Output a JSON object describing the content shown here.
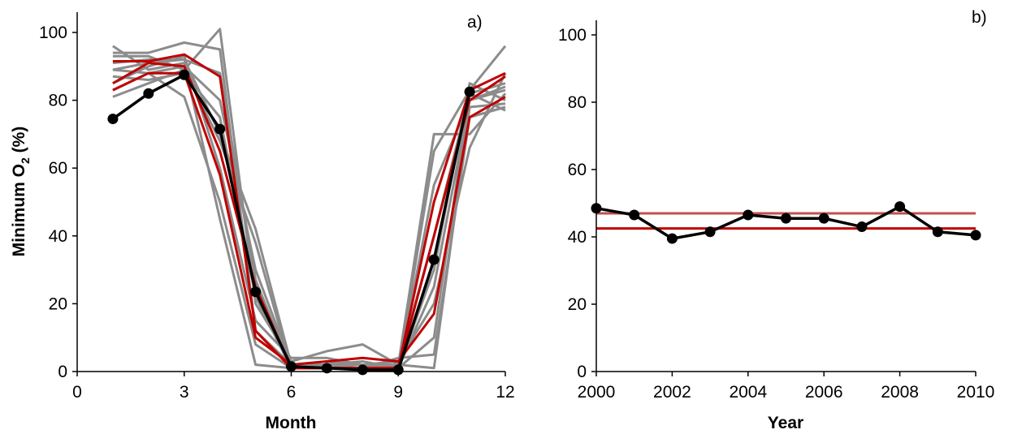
{
  "chart_data": [
    {
      "type": "line",
      "panel_label": "a)",
      "xlabel": "Month",
      "ylabel_main": "Minimum O",
      "ylabel_sub": "2",
      "ylabel_tail": " (%)",
      "xlim": [
        0,
        12
      ],
      "ylim": [
        0,
        100
      ],
      "xticks": [
        0,
        3,
        6,
        9,
        12
      ],
      "yticks": [
        0,
        20,
        40,
        60,
        80,
        100
      ],
      "colors": {
        "gray": "#8c8c8c",
        "red": "#c00000",
        "black": "#000000"
      },
      "series": [
        {
          "color": "gray",
          "x": [
            1,
            2,
            3,
            4,
            5,
            6,
            7,
            8,
            9,
            10,
            11,
            12
          ],
          "y": [
            96,
            89,
            91,
            45,
            2,
            1,
            2,
            3,
            1,
            65,
            83,
            96
          ]
        },
        {
          "color": "gray",
          "x": [
            1,
            2,
            3,
            4,
            5,
            6,
            7,
            8,
            9,
            10,
            11,
            12
          ],
          "y": [
            94,
            94,
            97,
            95,
            12,
            2,
            2,
            1,
            2,
            1,
            78,
            79
          ]
        },
        {
          "color": "gray",
          "x": [
            1,
            2,
            3,
            4,
            5,
            6,
            7,
            8,
            9,
            10,
            11,
            12
          ],
          "y": [
            93,
            93,
            89,
            101,
            20,
            3,
            6,
            8,
            2,
            70,
            70,
            82
          ]
        },
        {
          "color": "gray",
          "x": [
            1,
            2,
            3,
            4,
            5,
            6,
            7,
            8,
            9,
            10,
            11,
            12
          ],
          "y": [
            91,
            92,
            92,
            88,
            27,
            1,
            1,
            1,
            1,
            55,
            80,
            84
          ]
        },
        {
          "color": "gray",
          "x": [
            1,
            2,
            3,
            4,
            5,
            6,
            7,
            8,
            9,
            10,
            11,
            12
          ],
          "y": [
            89,
            88,
            90,
            80,
            30,
            2,
            3,
            2,
            2,
            40,
            82,
            85
          ]
        },
        {
          "color": "gray",
          "x": [
            1,
            2,
            3,
            4,
            5,
            6,
            7,
            8,
            9,
            10,
            11,
            12
          ],
          "y": [
            87,
            86,
            88,
            75,
            22,
            1,
            1,
            1,
            1,
            30,
            85,
            80
          ]
        },
        {
          "color": "gray",
          "x": [
            1,
            2,
            3,
            4,
            5,
            6,
            7,
            8,
            9,
            10,
            11,
            12
          ],
          "y": [
            85,
            90,
            93,
            60,
            15,
            4,
            4,
            2,
            3,
            20,
            66,
            88
          ]
        },
        {
          "color": "gray",
          "x": [
            1,
            2,
            3,
            4,
            5,
            6,
            7,
            8,
            9,
            10,
            11,
            12
          ],
          "y": [
            83,
            88,
            81,
            50,
            8,
            1,
            1,
            1,
            1,
            10,
            82,
            77
          ]
        },
        {
          "color": "gray",
          "x": [
            1,
            2,
            3,
            4,
            5,
            6,
            7,
            8,
            9,
            10,
            11,
            12
          ],
          "y": [
            81,
            85,
            89,
            68,
            38,
            1,
            1,
            1,
            4,
            5,
            75,
            78
          ]
        },
        {
          "color": "gray",
          "x": [
            1,
            2,
            3,
            4,
            5,
            6,
            7,
            8,
            9,
            10,
            11,
            12
          ],
          "y": [
            89,
            91,
            92,
            70,
            42,
            2,
            2,
            2,
            1,
            25,
            80,
            83
          ]
        },
        {
          "color": "red",
          "x": [
            1,
            2,
            3,
            4,
            5,
            6,
            7,
            8,
            9,
            10,
            11,
            12
          ],
          "y": [
            91.5,
            91.5,
            93.5,
            87,
            12,
            1,
            1,
            1,
            1,
            50,
            83,
            88
          ]
        },
        {
          "color": "red",
          "x": [
            1,
            2,
            3,
            4,
            5,
            6,
            7,
            8,
            9,
            10,
            11,
            12
          ],
          "y": [
            83,
            88,
            88,
            58,
            10,
            2,
            3,
            4,
            3,
            17,
            75,
            81
          ]
        },
        {
          "color": "red",
          "x": [
            1,
            2,
            3,
            4,
            5,
            6,
            7,
            8,
            9,
            10,
            11,
            12
          ],
          "y": [
            85,
            91,
            90,
            65,
            25,
            1,
            1,
            1,
            1,
            40,
            80,
            87
          ]
        },
        {
          "color": "black",
          "markers": true,
          "x": [
            1,
            2,
            3,
            4,
            5,
            6,
            7,
            8,
            9,
            10,
            11,
            12
          ],
          "y": [
            74.5,
            82,
            87.5,
            71.5,
            23.5,
            1.5,
            1,
            0.5,
            0.5,
            33,
            82.5,
            null
          ]
        }
      ]
    },
    {
      "type": "line",
      "panel_label": "b)",
      "xlabel": "Year",
      "xlim": [
        2000,
        2010
      ],
      "ylim": [
        0,
        100
      ],
      "xticks": [
        2000,
        2002,
        2004,
        2006,
        2008,
        2010
      ],
      "yticks": [
        0,
        20,
        40,
        60,
        80,
        100
      ],
      "colors": {
        "black": "#000000",
        "red_light": "#c0504d",
        "red_dark": "#c00000"
      },
      "series": [
        {
          "color": "black",
          "markers": true,
          "x": [
            2000,
            2001,
            2002,
            2003,
            2004,
            2005,
            2006,
            2007,
            2008,
            2009,
            2010
          ],
          "y": [
            48.5,
            46.5,
            39.5,
            41.5,
            46.5,
            45.5,
            45.5,
            43,
            49,
            41.5,
            40.5
          ]
        }
      ],
      "hlines": [
        {
          "color": "red_light",
          "y": 47
        },
        {
          "color": "red_dark",
          "y": 42.5
        }
      ]
    }
  ]
}
